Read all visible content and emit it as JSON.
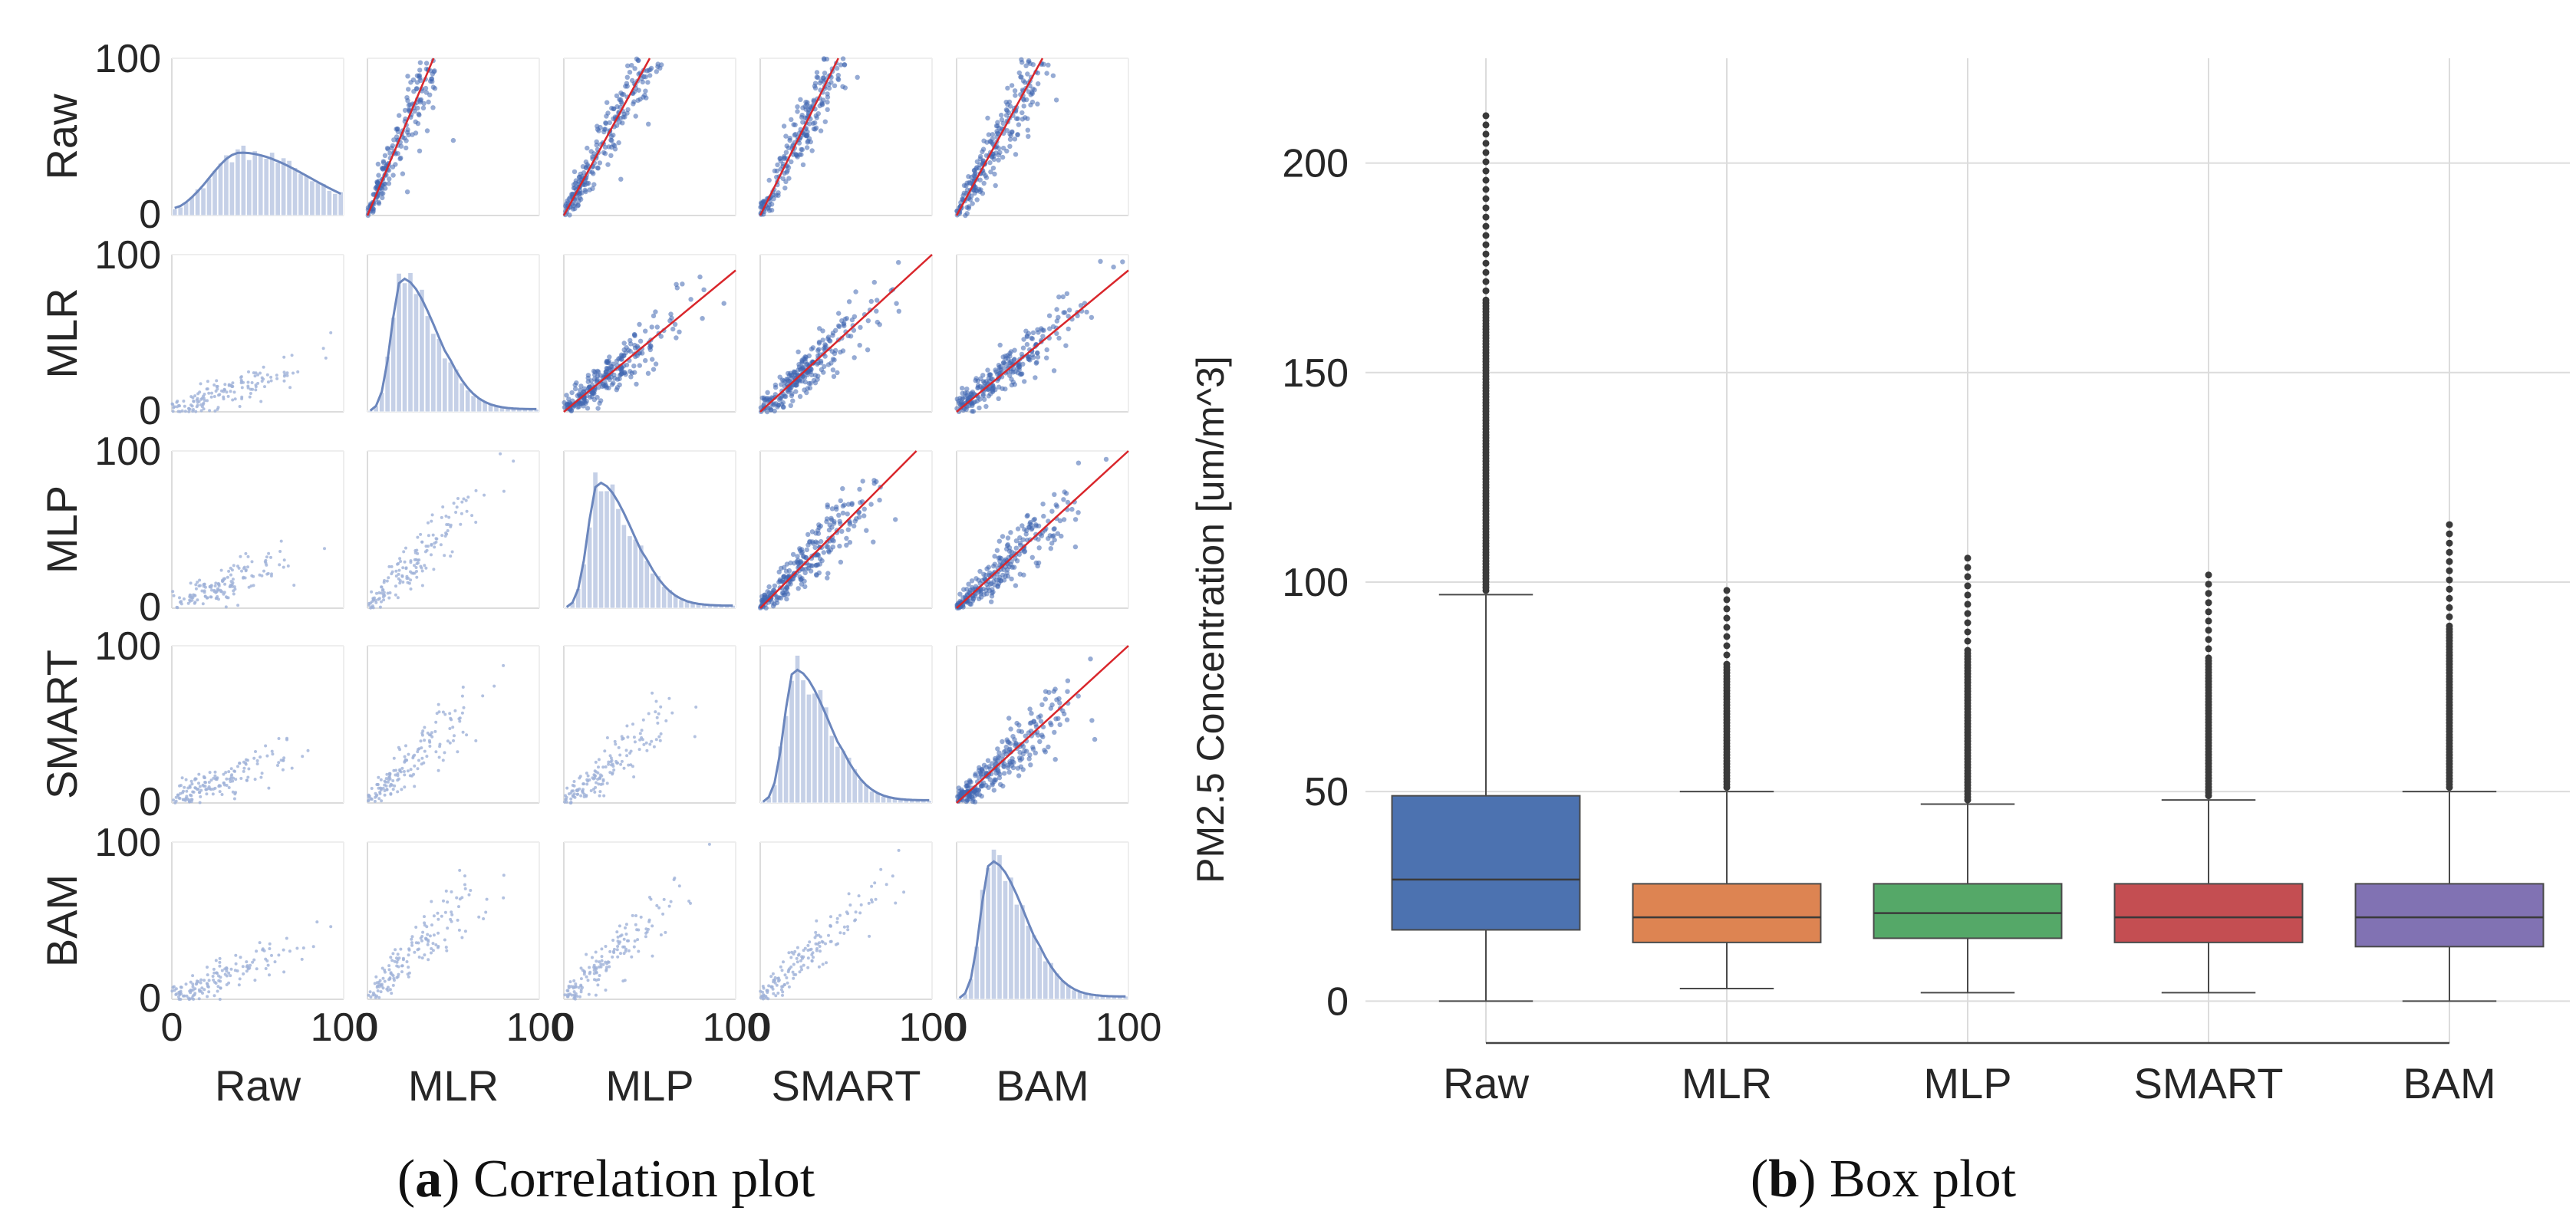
{
  "colors": {
    "scatter_lower": "#9fb1d8",
    "scatter_upper": "#3f66b0",
    "fit_line": "#d9262b",
    "hist_bar": "#c5d0e7",
    "kde_line": "#6b86bd",
    "grid": "#dcdcdc",
    "box_raw": "#4c72b0",
    "box_mlr": "#dd8452",
    "box_mlp": "#55a868",
    "box_smart": "#c44e52",
    "box_bam": "#8172b3"
  },
  "chart_data": [
    {
      "type": "scatter",
      "panel": "pair-grid",
      "variables": [
        "Raw",
        "MLR",
        "MLP",
        "SMART",
        "BAM"
      ],
      "axis_range": [
        0,
        100
      ],
      "tick_labels": [
        "0",
        "100"
      ],
      "diagonal": "histogram with KDE",
      "diagonal_modes": {
        "Raw": 40,
        "MLR": 20,
        "MLP": 20,
        "SMART": 20,
        "BAM": 20
      },
      "diagonal_peak_density": {
        "Raw": 0.4,
        "MLR": 0.85,
        "MLP": 0.8,
        "SMART": 0.85,
        "BAM": 0.88
      },
      "upper_triangle": "scatter with red regression line",
      "lower_triangle": "scatter",
      "fit_slopes": {
        "Raw|MLR": 2.6,
        "Raw|MLP": 2.0,
        "Raw|SMART": 2.2,
        "Raw|BAM": 2.0,
        "MLR|MLP": 0.9,
        "MLR|SMART": 1.0,
        "MLR|BAM": 0.9,
        "MLP|SMART": 1.1,
        "MLP|BAM": 1.0,
        "SMART|BAM": 1.0
      },
      "caption_label": "a",
      "caption_text": "Correlation plot"
    },
    {
      "type": "box",
      "panel": "box-plot",
      "ylabel": "PM2.5 Concentration [um/m^3]",
      "ylim": [
        -10,
        225
      ],
      "yticks": [
        0,
        50,
        100,
        150,
        200
      ],
      "categories": [
        "Raw",
        "MLR",
        "MLP",
        "SMART",
        "BAM"
      ],
      "boxes": [
        {
          "name": "Raw",
          "q1": 17,
          "median": 29,
          "q3": 49,
          "whisker_low": 0,
          "whisker_high": 97,
          "outlier_range": [
            98,
            213
          ]
        },
        {
          "name": "MLR",
          "q1": 14,
          "median": 20,
          "q3": 28,
          "whisker_low": 3,
          "whisker_high": 50,
          "outlier_range": [
            51,
            99
          ]
        },
        {
          "name": "MLP",
          "q1": 15,
          "median": 21,
          "q3": 28,
          "whisker_low": 2,
          "whisker_high": 47,
          "outlier_range": [
            48,
            107
          ]
        },
        {
          "name": "SMART",
          "q1": 14,
          "median": 20,
          "q3": 28,
          "whisker_low": 2,
          "whisker_high": 48,
          "outlier_range": [
            49,
            103
          ]
        },
        {
          "name": "BAM",
          "q1": 13,
          "median": 20,
          "q3": 28,
          "whisker_low": 0,
          "whisker_high": 50,
          "outlier_range": [
            51,
            115
          ]
        }
      ],
      "caption_label": "b",
      "caption_text": "Box plot"
    }
  ]
}
